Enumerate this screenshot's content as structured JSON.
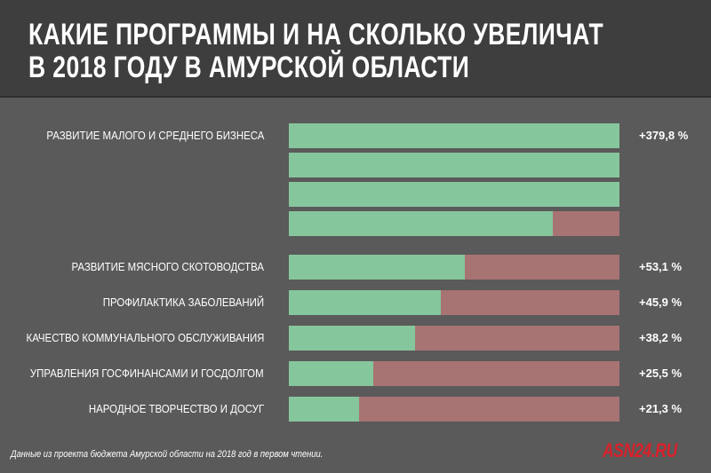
{
  "header": {
    "title_line1": "КАКИЕ ПРОГРАММЫ И НА СКОЛЬКО УВЕЛИЧАТ",
    "title_line2": "В 2018 ГОДУ В АМУРСКОЙ ОБЛАСТИ"
  },
  "chart_data": {
    "type": "bar",
    "title": "КАКИЕ ПРОГРАММЫ И НА СКОЛЬКО УВЕЛИЧАТ В 2018 ГОДУ В АМУРСКОЙ ОБЛАСТИ",
    "categories": [
      "РАЗВИТИЕ МАЛОГО И СРЕДНЕГО БИЗНЕСА",
      "РАЗВИТИЕ МЯСНОГО СКОТОВОДСТВА",
      "ПРОФИЛАКТИКА ЗАБОЛЕВАНИЙ",
      "КАЧЕСТВО КОММУНАЛЬНОГО ОБСЛУЖИВАНИЯ",
      "УПРАВЛЕНИЯ ГОСФИНАНСАМИ И ГОСДОЛГОМ",
      "НАРОДНОЕ ТВОРЧЕСТВО И ДОСУГ"
    ],
    "values": [
      379.8,
      53.1,
      45.9,
      38.2,
      25.5,
      21.3
    ],
    "value_labels": [
      "+379,8 %",
      "+53,1 %",
      "+45,9 %",
      "+38,2 %",
      "+25,5 %",
      "+21,3 %"
    ],
    "unit": "%",
    "row_scale": 100,
    "xlabel": "",
    "ylabel": "",
    "colors": {
      "increase": "#86c69c",
      "remainder": "#a87373"
    }
  },
  "footnote": "Данные из проекта бюджета Амурской области на 2018 год в первом чтении.",
  "logo": "ASN24.RU"
}
